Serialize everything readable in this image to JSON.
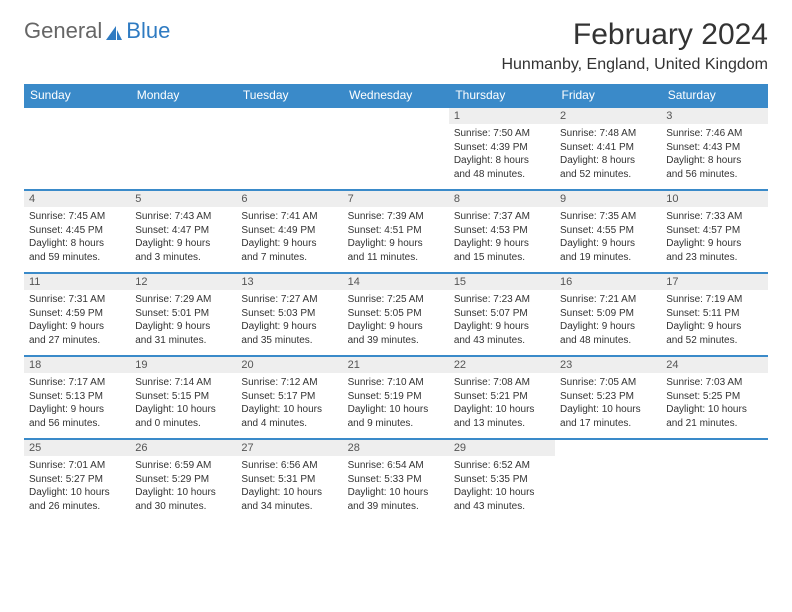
{
  "logo": {
    "general": "General",
    "blue": "Blue"
  },
  "title": "February 2024",
  "location": "Hunmanby, England, United Kingdom",
  "colors": {
    "header_bg": "#3a8ac9",
    "header_text": "#ffffff",
    "daynum_bg": "#eeeeee",
    "border": "#3a8ac9",
    "logo_blue": "#2f7bc2"
  },
  "daysOfWeek": [
    "Sunday",
    "Monday",
    "Tuesday",
    "Wednesday",
    "Thursday",
    "Friday",
    "Saturday"
  ],
  "weeks": [
    [
      {
        "empty": true
      },
      {
        "empty": true
      },
      {
        "empty": true
      },
      {
        "empty": true
      },
      {
        "num": "1",
        "sunrise": "Sunrise: 7:50 AM",
        "sunset": "Sunset: 4:39 PM",
        "daylight1": "Daylight: 8 hours",
        "daylight2": "and 48 minutes."
      },
      {
        "num": "2",
        "sunrise": "Sunrise: 7:48 AM",
        "sunset": "Sunset: 4:41 PM",
        "daylight1": "Daylight: 8 hours",
        "daylight2": "and 52 minutes."
      },
      {
        "num": "3",
        "sunrise": "Sunrise: 7:46 AM",
        "sunset": "Sunset: 4:43 PM",
        "daylight1": "Daylight: 8 hours",
        "daylight2": "and 56 minutes."
      }
    ],
    [
      {
        "num": "4",
        "sunrise": "Sunrise: 7:45 AM",
        "sunset": "Sunset: 4:45 PM",
        "daylight1": "Daylight: 8 hours",
        "daylight2": "and 59 minutes."
      },
      {
        "num": "5",
        "sunrise": "Sunrise: 7:43 AM",
        "sunset": "Sunset: 4:47 PM",
        "daylight1": "Daylight: 9 hours",
        "daylight2": "and 3 minutes."
      },
      {
        "num": "6",
        "sunrise": "Sunrise: 7:41 AM",
        "sunset": "Sunset: 4:49 PM",
        "daylight1": "Daylight: 9 hours",
        "daylight2": "and 7 minutes."
      },
      {
        "num": "7",
        "sunrise": "Sunrise: 7:39 AM",
        "sunset": "Sunset: 4:51 PM",
        "daylight1": "Daylight: 9 hours",
        "daylight2": "and 11 minutes."
      },
      {
        "num": "8",
        "sunrise": "Sunrise: 7:37 AM",
        "sunset": "Sunset: 4:53 PM",
        "daylight1": "Daylight: 9 hours",
        "daylight2": "and 15 minutes."
      },
      {
        "num": "9",
        "sunrise": "Sunrise: 7:35 AM",
        "sunset": "Sunset: 4:55 PM",
        "daylight1": "Daylight: 9 hours",
        "daylight2": "and 19 minutes."
      },
      {
        "num": "10",
        "sunrise": "Sunrise: 7:33 AM",
        "sunset": "Sunset: 4:57 PM",
        "daylight1": "Daylight: 9 hours",
        "daylight2": "and 23 minutes."
      }
    ],
    [
      {
        "num": "11",
        "sunrise": "Sunrise: 7:31 AM",
        "sunset": "Sunset: 4:59 PM",
        "daylight1": "Daylight: 9 hours",
        "daylight2": "and 27 minutes."
      },
      {
        "num": "12",
        "sunrise": "Sunrise: 7:29 AM",
        "sunset": "Sunset: 5:01 PM",
        "daylight1": "Daylight: 9 hours",
        "daylight2": "and 31 minutes."
      },
      {
        "num": "13",
        "sunrise": "Sunrise: 7:27 AM",
        "sunset": "Sunset: 5:03 PM",
        "daylight1": "Daylight: 9 hours",
        "daylight2": "and 35 minutes."
      },
      {
        "num": "14",
        "sunrise": "Sunrise: 7:25 AM",
        "sunset": "Sunset: 5:05 PM",
        "daylight1": "Daylight: 9 hours",
        "daylight2": "and 39 minutes."
      },
      {
        "num": "15",
        "sunrise": "Sunrise: 7:23 AM",
        "sunset": "Sunset: 5:07 PM",
        "daylight1": "Daylight: 9 hours",
        "daylight2": "and 43 minutes."
      },
      {
        "num": "16",
        "sunrise": "Sunrise: 7:21 AM",
        "sunset": "Sunset: 5:09 PM",
        "daylight1": "Daylight: 9 hours",
        "daylight2": "and 48 minutes."
      },
      {
        "num": "17",
        "sunrise": "Sunrise: 7:19 AM",
        "sunset": "Sunset: 5:11 PM",
        "daylight1": "Daylight: 9 hours",
        "daylight2": "and 52 minutes."
      }
    ],
    [
      {
        "num": "18",
        "sunrise": "Sunrise: 7:17 AM",
        "sunset": "Sunset: 5:13 PM",
        "daylight1": "Daylight: 9 hours",
        "daylight2": "and 56 minutes."
      },
      {
        "num": "19",
        "sunrise": "Sunrise: 7:14 AM",
        "sunset": "Sunset: 5:15 PM",
        "daylight1": "Daylight: 10 hours",
        "daylight2": "and 0 minutes."
      },
      {
        "num": "20",
        "sunrise": "Sunrise: 7:12 AM",
        "sunset": "Sunset: 5:17 PM",
        "daylight1": "Daylight: 10 hours",
        "daylight2": "and 4 minutes."
      },
      {
        "num": "21",
        "sunrise": "Sunrise: 7:10 AM",
        "sunset": "Sunset: 5:19 PM",
        "daylight1": "Daylight: 10 hours",
        "daylight2": "and 9 minutes."
      },
      {
        "num": "22",
        "sunrise": "Sunrise: 7:08 AM",
        "sunset": "Sunset: 5:21 PM",
        "daylight1": "Daylight: 10 hours",
        "daylight2": "and 13 minutes."
      },
      {
        "num": "23",
        "sunrise": "Sunrise: 7:05 AM",
        "sunset": "Sunset: 5:23 PM",
        "daylight1": "Daylight: 10 hours",
        "daylight2": "and 17 minutes."
      },
      {
        "num": "24",
        "sunrise": "Sunrise: 7:03 AM",
        "sunset": "Sunset: 5:25 PM",
        "daylight1": "Daylight: 10 hours",
        "daylight2": "and 21 minutes."
      }
    ],
    [
      {
        "num": "25",
        "sunrise": "Sunrise: 7:01 AM",
        "sunset": "Sunset: 5:27 PM",
        "daylight1": "Daylight: 10 hours",
        "daylight2": "and 26 minutes."
      },
      {
        "num": "26",
        "sunrise": "Sunrise: 6:59 AM",
        "sunset": "Sunset: 5:29 PM",
        "daylight1": "Daylight: 10 hours",
        "daylight2": "and 30 minutes."
      },
      {
        "num": "27",
        "sunrise": "Sunrise: 6:56 AM",
        "sunset": "Sunset: 5:31 PM",
        "daylight1": "Daylight: 10 hours",
        "daylight2": "and 34 minutes."
      },
      {
        "num": "28",
        "sunrise": "Sunrise: 6:54 AM",
        "sunset": "Sunset: 5:33 PM",
        "daylight1": "Daylight: 10 hours",
        "daylight2": "and 39 minutes."
      },
      {
        "num": "29",
        "sunrise": "Sunrise: 6:52 AM",
        "sunset": "Sunset: 5:35 PM",
        "daylight1": "Daylight: 10 hours",
        "daylight2": "and 43 minutes."
      },
      {
        "empty": true
      },
      {
        "empty": true
      }
    ]
  ]
}
